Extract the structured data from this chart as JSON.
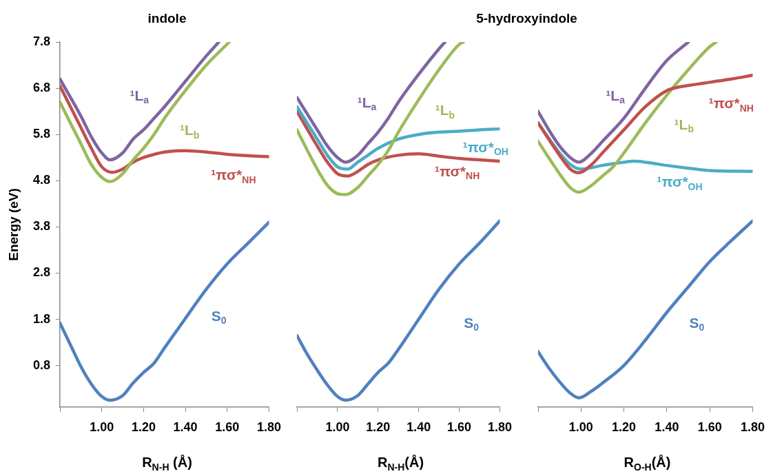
{
  "chart_data": [
    {
      "type": "line",
      "title": "indole",
      "xlabel": "R$_{N-H}$ (Å)",
      "ylabel": "Energy (eV)",
      "marker": "none",
      "xlim": [
        0.8,
        1.8
      ],
      "xticks": [
        {
          "value": 0.8,
          "label": null
        },
        {
          "value": 1,
          "label": "1.00"
        },
        {
          "value": 1.2,
          "label": "1.20"
        },
        {
          "value": 1.4,
          "label": "1.40"
        },
        {
          "value": 1.6,
          "label": "1.60"
        },
        {
          "value": 1.8,
          "label": "1.80"
        }
      ],
      "ylim": [
        -0.1,
        7.8
      ],
      "yticks": [
        0.8,
        1.8,
        2.8,
        3.8,
        4.8,
        5.8,
        6.8,
        7.8
      ],
      "series": [
        {
          "name": "S$_{0}$",
          "color": "#4f81bd",
          "x": [
            0.8,
            0.85,
            0.9,
            0.95,
            1.0,
            1.04,
            1.1,
            1.15,
            1.2,
            1.25,
            1.3,
            1.4,
            1.5,
            1.6,
            1.7,
            1.8
          ],
          "values": [
            1.72,
            1.25,
            0.78,
            0.4,
            0.13,
            0.05,
            0.15,
            0.42,
            0.65,
            0.85,
            1.18,
            1.82,
            2.45,
            3.0,
            3.45,
            3.9
          ]
        },
        {
          "name": "¹L$_{a}$",
          "color": "#8064a2",
          "x": [
            0.8,
            0.9,
            0.95,
            1.0,
            1.04,
            1.1,
            1.15,
            1.2,
            1.25,
            1.3,
            1.4,
            1.5,
            1.56
          ],
          "values": [
            7.0,
            6.2,
            5.75,
            5.4,
            5.25,
            5.4,
            5.7,
            5.9,
            6.15,
            6.4,
            6.95,
            7.5,
            7.8
          ]
        },
        {
          "name": "¹L$_{b}$",
          "color": "#9bbb59",
          "x": [
            0.8,
            0.9,
            0.95,
            1.0,
            1.04,
            1.1,
            1.15,
            1.2,
            1.25,
            1.3,
            1.4,
            1.5,
            1.61
          ],
          "values": [
            6.5,
            5.6,
            5.15,
            4.87,
            4.78,
            4.95,
            5.25,
            5.5,
            5.8,
            6.15,
            6.75,
            7.3,
            7.8
          ]
        },
        {
          "name": "¹πσ*$_{NH}$",
          "color": "#c0504d",
          "x": [
            0.8,
            0.9,
            0.95,
            1.0,
            1.05,
            1.1,
            1.15,
            1.2,
            1.3,
            1.4,
            1.5,
            1.6,
            1.7,
            1.8
          ],
          "values": [
            6.85,
            5.95,
            5.5,
            5.1,
            4.98,
            5.05,
            5.2,
            5.3,
            5.42,
            5.45,
            5.42,
            5.37,
            5.34,
            5.32
          ]
        }
      ]
    },
    {
      "type": "line",
      "title": "5-hydroxyindole",
      "xlabel": "R$_{N-H}$(Å)",
      "marker": "none",
      "tick_labels": "x",
      "xlim": [
        0.8,
        1.8
      ],
      "xticks": [
        {
          "value": 0.8,
          "label": null
        },
        {
          "value": 1,
          "label": "1.00"
        },
        {
          "value": 1.2,
          "label": "1.20"
        },
        {
          "value": 1.4,
          "label": "1.40"
        },
        {
          "value": 1.6,
          "label": "1.60"
        },
        {
          "value": 1.8,
          "label": "1.80"
        }
      ],
      "ylim": [
        -0.1,
        7.8
      ],
      "series": [
        {
          "name": "S$_{0}$",
          "color": "#4f81bd",
          "x": [
            0.8,
            0.85,
            0.9,
            0.95,
            1.0,
            1.04,
            1.1,
            1.15,
            1.2,
            1.25,
            1.3,
            1.4,
            1.5,
            1.6,
            1.7,
            1.8
          ],
          "values": [
            1.45,
            1.05,
            0.7,
            0.38,
            0.13,
            0.05,
            0.15,
            0.4,
            0.65,
            0.85,
            1.15,
            1.8,
            2.45,
            3.0,
            3.45,
            3.93
          ]
        },
        {
          "name": "¹L$_{a}$",
          "color": "#8064a2",
          "x": [
            0.8,
            0.9,
            0.95,
            1.0,
            1.04,
            1.1,
            1.15,
            1.2,
            1.25,
            1.3,
            1.4,
            1.5,
            1.53
          ],
          "values": [
            6.6,
            5.9,
            5.55,
            5.3,
            5.2,
            5.35,
            5.6,
            5.85,
            6.15,
            6.5,
            7.1,
            7.65,
            7.8
          ]
        },
        {
          "name": "¹L$_{b}$",
          "color": "#9bbb59",
          "x": [
            0.8,
            0.9,
            0.95,
            1.0,
            1.04,
            1.1,
            1.15,
            1.2,
            1.25,
            1.3,
            1.4,
            1.5,
            1.6,
            1.62
          ],
          "values": [
            5.9,
            5.05,
            4.7,
            4.52,
            4.5,
            4.65,
            4.9,
            5.15,
            5.45,
            5.85,
            6.55,
            7.2,
            7.75,
            7.8
          ]
        },
        {
          "name": "¹πσ*$_{OH}$",
          "color": "#4bacc6",
          "x": [
            0.8,
            0.9,
            0.95,
            1.0,
            1.05,
            1.1,
            1.15,
            1.2,
            1.3,
            1.4,
            1.5,
            1.6,
            1.7,
            1.8
          ],
          "values": [
            6.4,
            5.7,
            5.35,
            5.1,
            5.05,
            5.2,
            5.35,
            5.5,
            5.7,
            5.8,
            5.85,
            5.87,
            5.9,
            5.92
          ]
        },
        {
          "name": "¹πσ*$_{NH}$",
          "color": "#c0504d",
          "x": [
            0.8,
            0.9,
            0.95,
            1.0,
            1.05,
            1.1,
            1.15,
            1.2,
            1.3,
            1.4,
            1.5,
            1.6,
            1.7,
            1.8
          ],
          "values": [
            6.3,
            5.55,
            5.2,
            4.95,
            4.9,
            5.0,
            5.15,
            5.25,
            5.35,
            5.38,
            5.33,
            5.28,
            5.25,
            5.22
          ]
        }
      ]
    },
    {
      "type": "line",
      "xlabel": "R$_{O-H}$(Å)",
      "marker": "none",
      "tick_labels": "x",
      "xlim": [
        0.8,
        1.8
      ],
      "xticks": [
        {
          "value": 0.8,
          "label": null
        },
        {
          "value": 1,
          "label": "1.00"
        },
        {
          "value": 1.2,
          "label": "1.20"
        },
        {
          "value": 1.4,
          "label": "1.40"
        },
        {
          "value": 1.6,
          "label": "1.60"
        },
        {
          "value": 1.8,
          "label": "1.80"
        }
      ],
      "ylim": [
        -0.1,
        7.8
      ],
      "series": [
        {
          "name": "S$_{0}$",
          "color": "#4f81bd",
          "x": [
            0.8,
            0.85,
            0.9,
            0.95,
            0.99,
            1.05,
            1.1,
            1.2,
            1.3,
            1.4,
            1.5,
            1.6,
            1.7,
            1.8
          ],
          "values": [
            1.1,
            0.75,
            0.45,
            0.2,
            0.1,
            0.25,
            0.42,
            0.8,
            1.35,
            1.95,
            2.5,
            3.05,
            3.5,
            3.93
          ]
        },
        {
          "name": "¹L$_{a}$",
          "color": "#8064a2",
          "x": [
            0.8,
            0.85,
            0.9,
            0.95,
            0.99,
            1.05,
            1.1,
            1.2,
            1.3,
            1.4,
            1.5
          ],
          "values": [
            6.3,
            5.9,
            5.55,
            5.3,
            5.2,
            5.4,
            5.65,
            6.15,
            6.8,
            7.4,
            7.8
          ]
        },
        {
          "name": "¹πσ*$_{NH}$",
          "color": "#c0504d",
          "x": [
            0.8,
            0.9,
            0.95,
            0.99,
            1.05,
            1.1,
            1.2,
            1.3,
            1.4,
            1.45,
            1.5,
            1.6,
            1.7,
            1.8
          ],
          "values": [
            6.05,
            5.35,
            5.05,
            4.97,
            5.15,
            5.4,
            5.9,
            6.4,
            6.75,
            6.82,
            6.86,
            6.93,
            7.0,
            7.08
          ]
        },
        {
          "name": "¹L$_{b}$",
          "color": "#9bbb59",
          "x": [
            0.8,
            0.9,
            0.95,
            0.99,
            1.05,
            1.1,
            1.15,
            1.2,
            1.3,
            1.4,
            1.5,
            1.6,
            1.63
          ],
          "values": [
            5.65,
            4.95,
            4.65,
            4.55,
            4.7,
            4.9,
            5.1,
            5.4,
            6.05,
            6.65,
            7.2,
            7.7,
            7.8
          ]
        },
        {
          "name": "¹πσ*$_{OH}$",
          "color": "#4bacc6",
          "x": [
            0.8,
            0.9,
            0.95,
            1.0,
            1.1,
            1.2,
            1.25,
            1.3,
            1.4,
            1.5,
            1.6,
            1.8
          ],
          "values": [
            6.05,
            5.4,
            5.15,
            5.05,
            5.13,
            5.2,
            5.22,
            5.2,
            5.13,
            5.07,
            5.02,
            5.0
          ]
        }
      ]
    }
  ]
}
